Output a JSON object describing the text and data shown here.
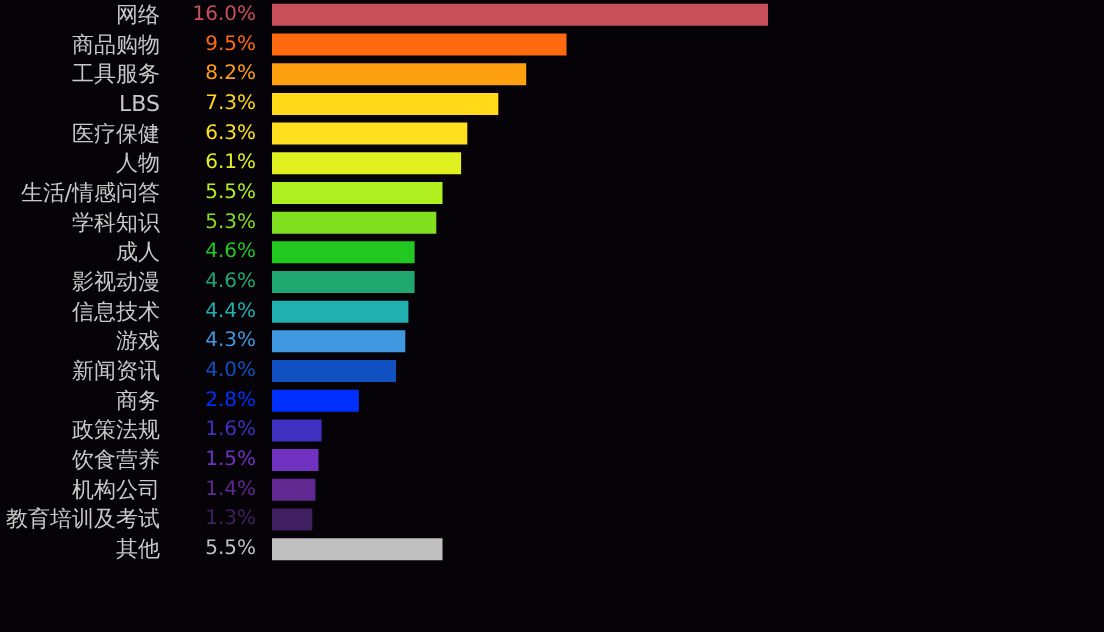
{
  "chart_data": {
    "type": "bar",
    "orientation": "horizontal",
    "data_labels": true,
    "categories": [
      "网络",
      "商品购物",
      "工具服务",
      "LBS",
      "医疗保健",
      "人物",
      "生活/情感问答",
      "学科知识",
      "成人",
      "影视动漫",
      "信息技术",
      "游戏",
      "新闻资讯",
      "商务",
      "政策法规",
      "饮食营养",
      "机构公司",
      "教育培训及考试",
      "其他"
    ],
    "values": [
      16.0,
      9.5,
      8.2,
      7.3,
      6.3,
      6.1,
      5.5,
      5.3,
      4.6,
      4.6,
      4.4,
      4.3,
      4.0,
      2.8,
      1.6,
      1.5,
      1.4,
      1.3,
      5.5
    ],
    "colors": [
      "#c8505a",
      "#ff6a10",
      "#ffa010",
      "#ffd818",
      "#ffe020",
      "#e0f020",
      "#b0f020",
      "#80e020",
      "#20c820",
      "#20a870",
      "#20b0b0",
      "#4098e0",
      "#1050c0",
      "#0030ff",
      "#4030c0",
      "#7030c0",
      "#602890",
      "#402060",
      "#c0c0c0"
    ],
    "value_labels": [
      "16.0%",
      "9.5%",
      "8.2%",
      "7.3%",
      "6.3%",
      "6.1%",
      "5.5%",
      "5.3%",
      "4.6%",
      "4.6%",
      "4.4%",
      "4.3%",
      "4.0%",
      "2.8%",
      "1.6%",
      "1.5%",
      "1.4%",
      "1.3%",
      "5.5%"
    ]
  }
}
